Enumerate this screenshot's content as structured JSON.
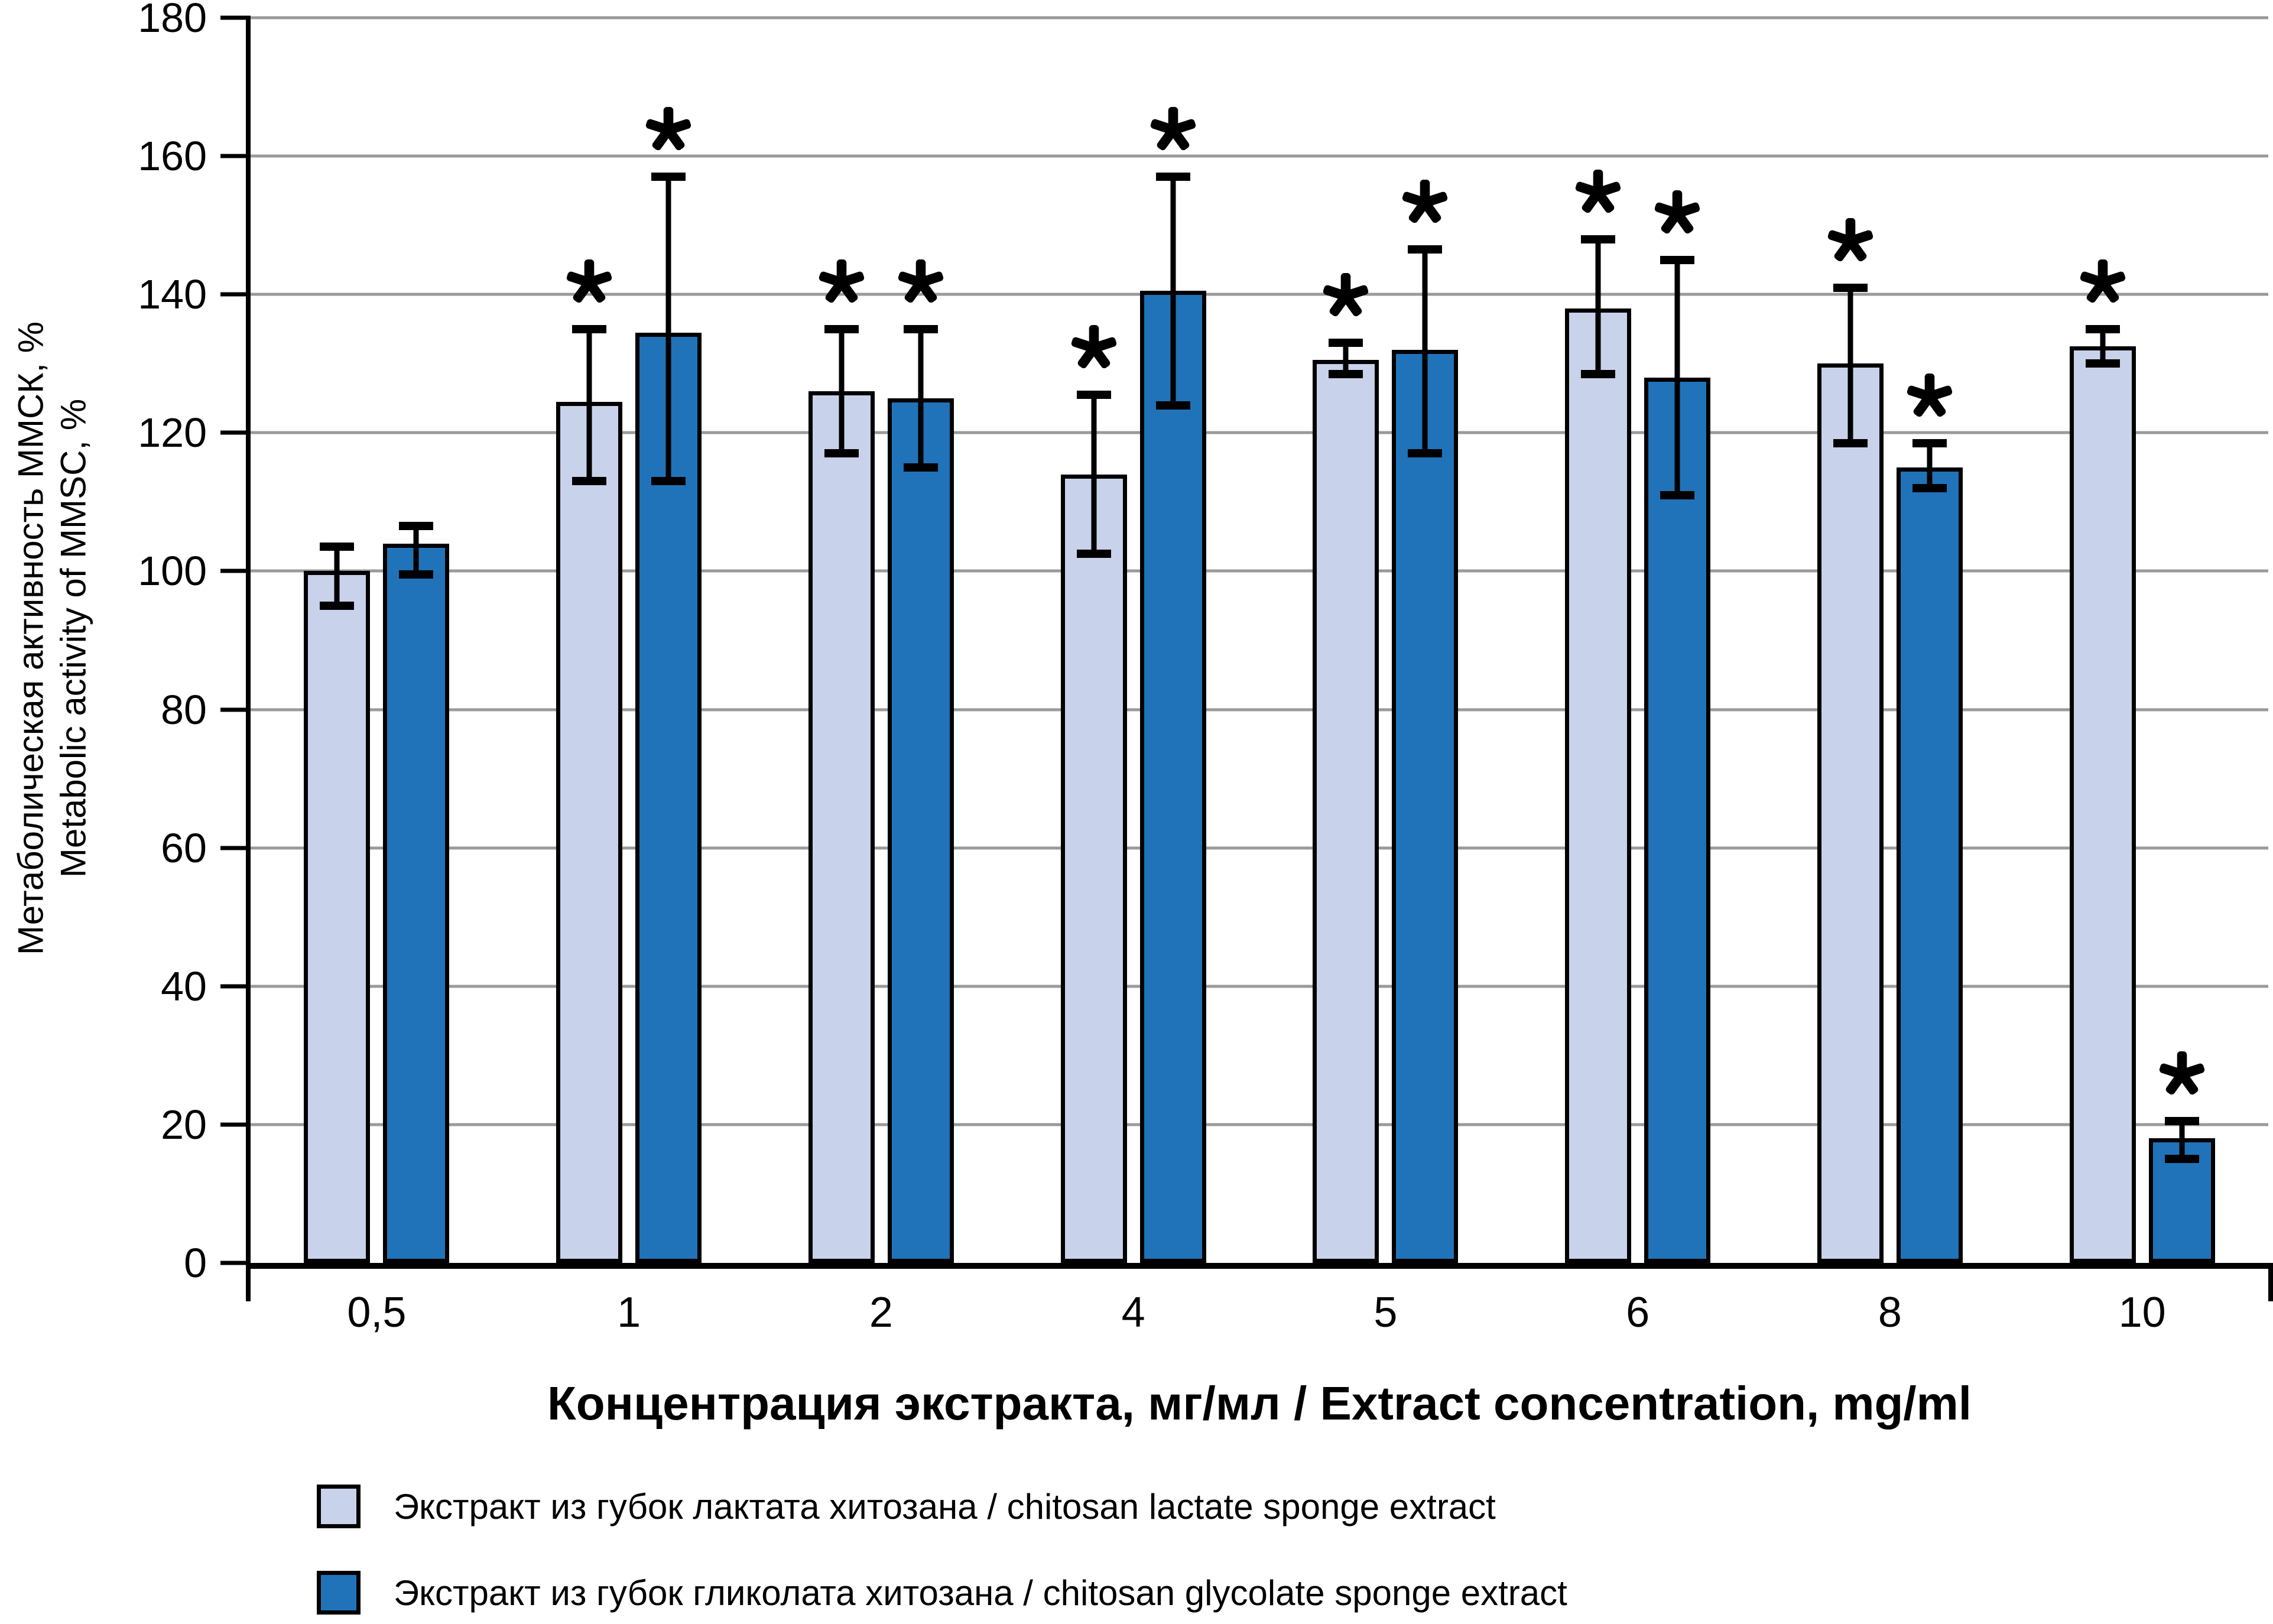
{
  "chart_data": {
    "type": "bar",
    "xlabel": "Концентрация экстракта, мг/мл / Extract concentration, mg/ml",
    "ylabel_lines": [
      "Метаболическая активность ММСК, %",
      "Metabolic activity of MMSC, %"
    ],
    "ylim": [
      0,
      180
    ],
    "ytick_step": 20,
    "ytick_labels": [
      "0",
      "20",
      "40",
      "60",
      "80",
      "100",
      "120",
      "140",
      "160",
      "180"
    ],
    "grid": "horizontal",
    "legend_position": "bottom-left",
    "significance_marker": "*",
    "categories": [
      "0,5",
      "1",
      "2",
      "4",
      "5",
      "6",
      "8",
      "10"
    ],
    "series": [
      {
        "name": "Экстракт из губок лактата хитозана / chitosan lactate sponge extract",
        "color": "#c8d2ea",
        "border_color": "#000000",
        "values": [
          100,
          124.5,
          126,
          114,
          130.5,
          138,
          130,
          132.5
        ],
        "err_low": [
          95,
          113,
          117,
          102.5,
          128.5,
          128.5,
          118.5,
          130
        ],
        "err_high": [
          103.5,
          135,
          135,
          125.5,
          133,
          148,
          141,
          135
        ],
        "significant": [
          false,
          true,
          true,
          true,
          true,
          true,
          true,
          true
        ]
      },
      {
        "name": "Экстракт из губок гликолата хитозана / chitosan glycolate sponge extract",
        "color": "#2073b8",
        "border_color": "#000000",
        "values": [
          104,
          134.5,
          125,
          140.5,
          132,
          128,
          115,
          18
        ],
        "err_low": [
          99.5,
          113,
          115,
          124,
          117,
          111,
          112,
          15
        ],
        "err_high": [
          106.5,
          157,
          135,
          157,
          146.5,
          145,
          118.5,
          20.5
        ],
        "significant": [
          false,
          true,
          true,
          true,
          true,
          true,
          true,
          true
        ]
      }
    ],
    "colors": {
      "grid": "#9a9a9a",
      "axis": "#000000",
      "series_light": "#c8d2ea",
      "series_dark": "#2073b8"
    }
  },
  "legend": {
    "items": [
      {
        "label": "Экстракт из губок лактата хитозана / chitosan lactate sponge extract",
        "color": "#c8d2ea"
      },
      {
        "label": "Экстракт из губок гликолата хитозана / chitosan glycolate sponge extract",
        "color": "#2073b8"
      }
    ]
  }
}
